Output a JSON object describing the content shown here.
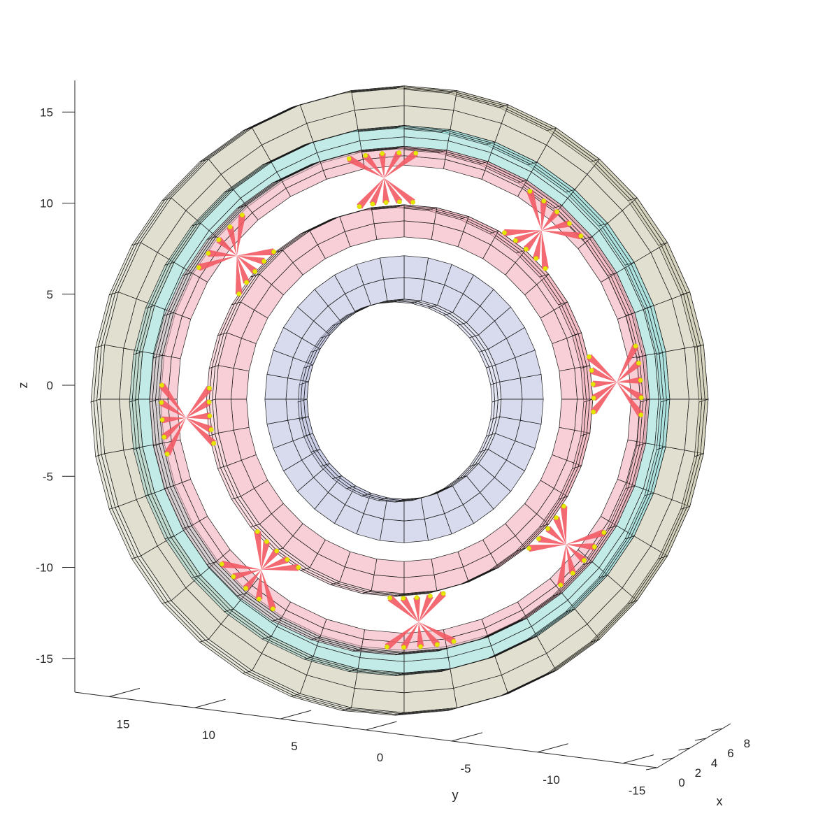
{
  "chart_data": {
    "type": "3d-surface",
    "title": "",
    "xlabel": "x",
    "ylabel": "y",
    "zlabel": "z",
    "x_ticks": [
      "0",
      "2",
      "4",
      "6",
      "8"
    ],
    "y_ticks": [
      "15",
      "10",
      "5",
      "0",
      "-5",
      "-10",
      "-15"
    ],
    "z_ticks": [
      "15",
      "10",
      "5",
      "0",
      "-5",
      "-10",
      "-15"
    ],
    "xlim": [
      0,
      9
    ],
    "ylim": [
      -17,
      17
    ],
    "zlim": [
      -17,
      17
    ],
    "grid": false,
    "legend": "none",
    "surfaces": [
      {
        "part": "outer ring outer surface",
        "inner_radius": 14.5,
        "outer_radius": 16.6,
        "color": "#c9c5a8"
      },
      {
        "part": "outer ring raceway",
        "inner_radius": 13.3,
        "outer_radius": 14.5,
        "color": "#8fd8d2"
      },
      {
        "part": "cage outer band",
        "inner_radius": 12.4,
        "outer_radius": 13.4,
        "color": "#f3a8b4"
      },
      {
        "part": "inner ring outer surface",
        "inner_radius": 8.6,
        "outer_radius": 10.3,
        "color": "#f3a8b4"
      },
      {
        "part": "inner ring bore",
        "inner_radius": 5.3,
        "outer_radius": 7.6,
        "color": "#b8bede"
      }
    ],
    "rolling_elements": {
      "count": 8,
      "angles_deg": [
        0,
        45,
        90,
        135,
        180,
        225,
        270,
        315
      ],
      "color": "#f25a64",
      "contact_marker_color": "#e6e600"
    }
  }
}
